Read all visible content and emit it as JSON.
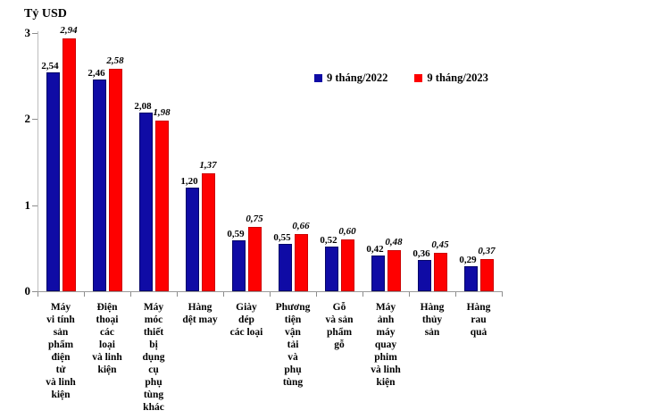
{
  "chart_data": {
    "type": "bar",
    "title": "Tỷ USD",
    "ylabel": "Tỷ USD",
    "xlabel": "",
    "ylim": [
      0,
      3
    ],
    "yticks": [
      0,
      1,
      2,
      3
    ],
    "grid": false,
    "legend_position": "top-right",
    "decimal_separator": ",",
    "categories": [
      "Máy vi tính sản phẩm điện tử và linh kiện",
      "Điện thoại các loại và linh kiện",
      "Máy móc thiết bị dụng cụ phụ tùng khác",
      "Hàng dệt may",
      "Giày dép các loại",
      "Phương tiện vận tải và phụ tùng",
      "Gỗ và sản phẩm gỗ",
      "Máy ảnh máy quay phim và linh kiện",
      "Hàng thủy sản",
      "Hàng rau quả"
    ],
    "category_lines": [
      [
        "Máy",
        "vi tính",
        "sản",
        "phẩm",
        "điện",
        "tử",
        "và linh",
        "kiện"
      ],
      [
        "Điện",
        "thoại",
        "các",
        "loại",
        "và linh",
        "kiện"
      ],
      [
        "Máy",
        "móc",
        "thiết",
        "bị",
        "dụng",
        "cụ",
        "phụ",
        "tùng",
        "khác"
      ],
      [
        "Hàng",
        "dệt may"
      ],
      [
        "Giày",
        "dép",
        "các loại"
      ],
      [
        "Phương",
        "tiện",
        "vận",
        "tải",
        "và",
        "phụ",
        "tùng"
      ],
      [
        "Gỗ",
        "và sản",
        "phẩm",
        "gỗ"
      ],
      [
        "Máy",
        "ảnh",
        "máy",
        "quay",
        "phim",
        "và linh",
        "kiện"
      ],
      [
        "Hàng",
        "thủy",
        "sản"
      ],
      [
        "Hàng",
        "rau",
        "quả"
      ]
    ],
    "series": [
      {
        "name": "9 tháng/2022",
        "color": "#0F0BA5",
        "values": [
          2.54,
          2.46,
          2.08,
          1.2,
          0.59,
          0.55,
          0.52,
          0.42,
          0.36,
          0.29
        ]
      },
      {
        "name": "9 tháng/2023",
        "color": "#FE0000",
        "values": [
          2.94,
          2.58,
          1.98,
          1.37,
          0.75,
          0.66,
          0.6,
          0.48,
          0.45,
          0.37
        ]
      }
    ]
  }
}
